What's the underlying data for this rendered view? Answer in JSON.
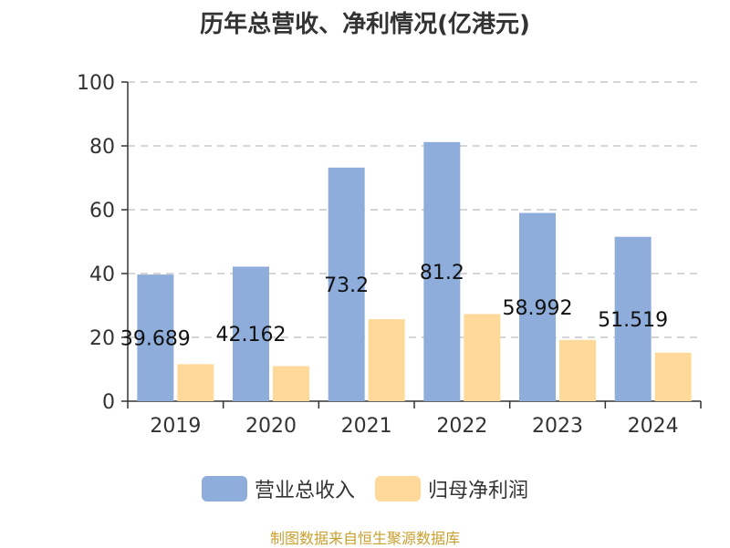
{
  "chart_data": {
    "type": "bar",
    "title": "历年总营收、净利情况(亿港元)",
    "categories": [
      "2019",
      "2020",
      "2021",
      "2022",
      "2023",
      "2024"
    ],
    "series": [
      {
        "name": "营业总收入",
        "color": "#8eaddb",
        "values": [
          39.689,
          42.162,
          73.2,
          81.2,
          58.992,
          51.519
        ],
        "labels": [
          "39.689",
          "42.162",
          "73.2",
          "81.2",
          "58.992",
          "51.519"
        ]
      },
      {
        "name": "归母净利润",
        "color": "#ffd999",
        "values": [
          11.6,
          11.0,
          25.7,
          27.3,
          19.2,
          15.2
        ]
      }
    ],
    "ylim": [
      0,
      100
    ],
    "yticks": [
      0,
      20,
      40,
      60,
      80,
      100
    ],
    "grid": true,
    "legend_position": "bottom"
  },
  "footer": {
    "source": "制图数据来自恒生聚源数据库"
  }
}
